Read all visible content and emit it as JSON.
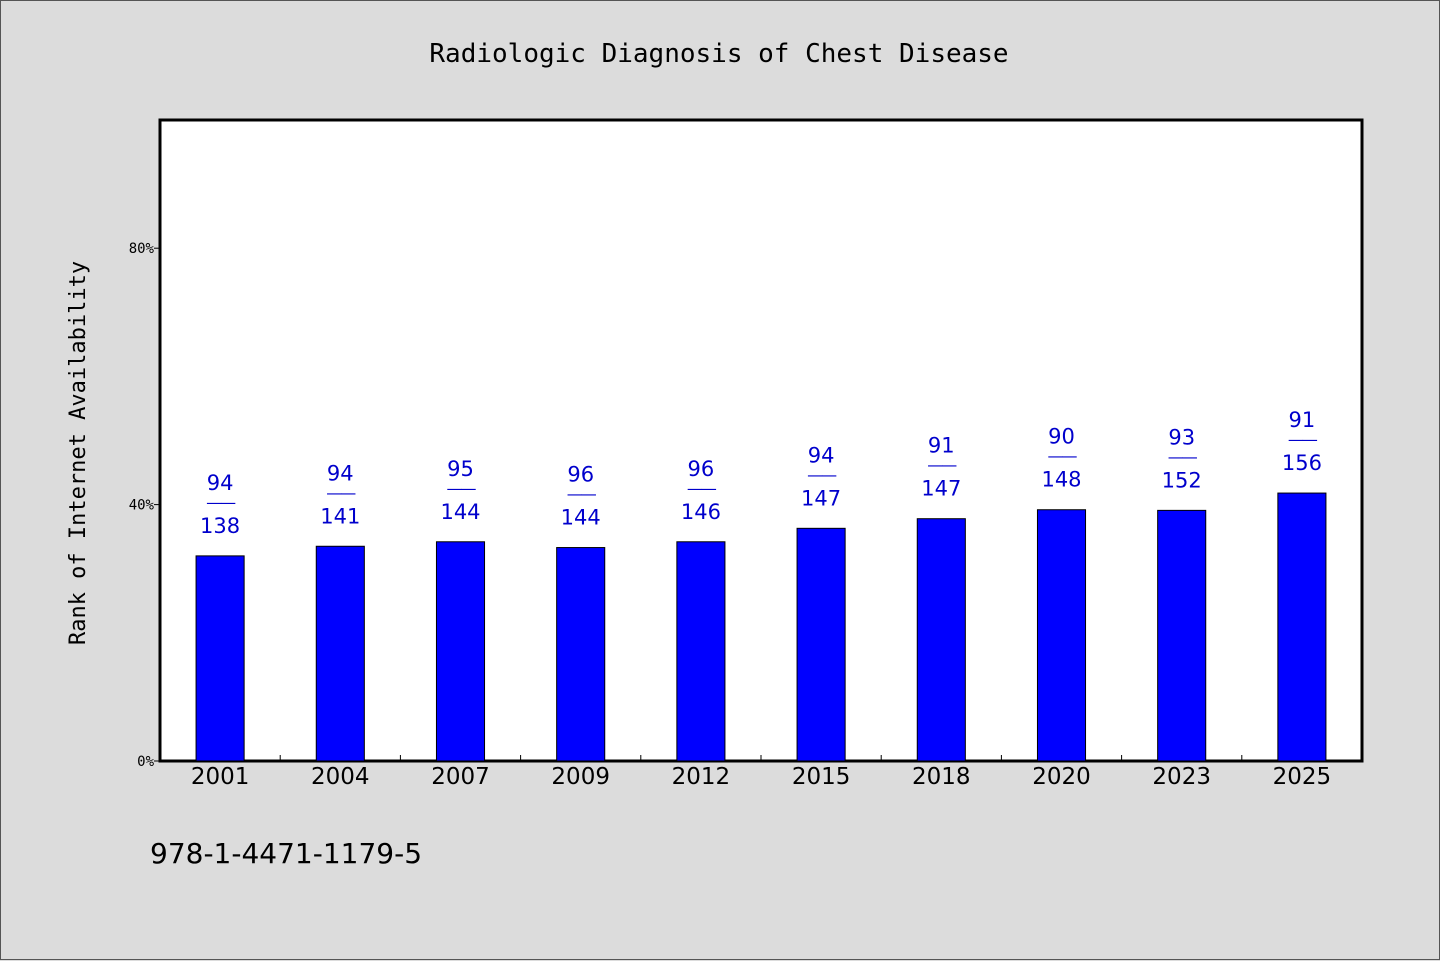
{
  "chart_data": {
    "type": "bar",
    "title": "Radiologic Diagnosis of Chest Disease",
    "xlabel": "",
    "ylabel": "Rank of Internet Availability",
    "ylim": [
      0,
      100
    ],
    "yticks": [
      {
        "value": 0,
        "label": "0%"
      },
      {
        "value": 40,
        "label": "40%"
      },
      {
        "value": 80,
        "label": "80%"
      }
    ],
    "categories": [
      "2001",
      "2004",
      "2007",
      "2009",
      "2012",
      "2015",
      "2018",
      "2020",
      "2023",
      "2025"
    ],
    "values": [
      32,
      33.5,
      34.2,
      33.3,
      34.2,
      36.3,
      37.8,
      39.2,
      39.1,
      41.8
    ],
    "bar_labels": [
      {
        "top": "94",
        "sep": "——",
        "bottom": "138"
      },
      {
        "top": "94",
        "sep": "——",
        "bottom": "141"
      },
      {
        "top": "95",
        "sep": "——",
        "bottom": "144"
      },
      {
        "top": "96",
        "sep": "——",
        "bottom": "144"
      },
      {
        "top": "96",
        "sep": "——",
        "bottom": "146"
      },
      {
        "top": "94",
        "sep": "——",
        "bottom": "147"
      },
      {
        "top": "91",
        "sep": "——",
        "bottom": "147"
      },
      {
        "top": "90",
        "sep": "——",
        "bottom": "148"
      },
      {
        "top": "93",
        "sep": "——",
        "bottom": "152"
      },
      {
        "top": "91",
        "sep": "——",
        "bottom": "156"
      }
    ],
    "grid": false,
    "colors": {
      "bar": "#0000ff",
      "label": "#0000cc",
      "background": "#dcdcdc",
      "plot": "#ffffff"
    }
  },
  "footnote": "978-1-4471-1179-5"
}
